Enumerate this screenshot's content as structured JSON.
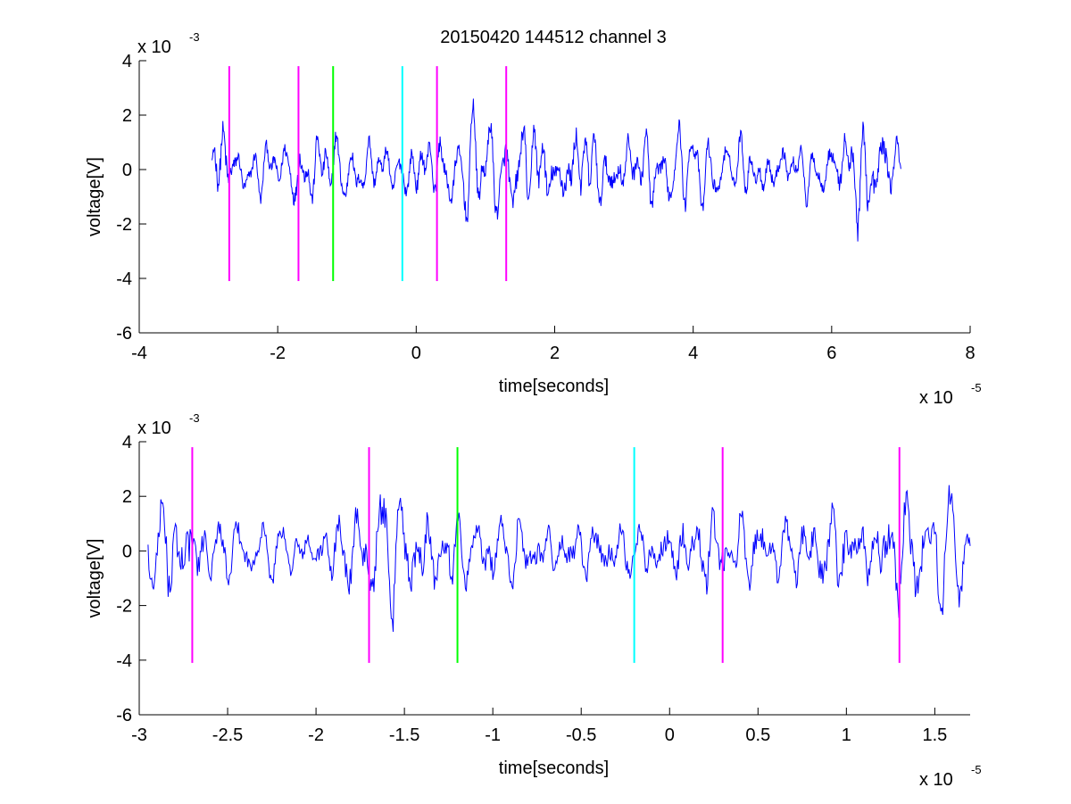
{
  "figure": {
    "title": "20150420 144512 channel 3"
  },
  "chart_data": [
    {
      "type": "line",
      "title": "20150420 144512 channel 3",
      "xlabel": "time[seconds]",
      "ylabel": "voltage[V]",
      "x_multiplier": "x 10",
      "x_multiplier_exponent": "-5",
      "y_multiplier": "x 10",
      "y_multiplier_exponent": "-3",
      "xlim": [
        -4,
        8
      ],
      "ylim": [
        -6,
        4
      ],
      "xticks": [
        -4,
        -2,
        0,
        2,
        4,
        6,
        8
      ],
      "xtick_labels": [
        "-4",
        "-2",
        "0",
        "2",
        "4",
        "6",
        "8"
      ],
      "yticks": [
        -6,
        -4,
        -2,
        0,
        2,
        4
      ],
      "ytick_labels": [
        "-6",
        "-4",
        "-2",
        "0",
        "2",
        "4"
      ],
      "grid": false,
      "signal": {
        "name": "",
        "color": "#0000ff",
        "x_range": [
          -2.95,
          7.0
        ],
        "points": 1200,
        "envelope_x": [
          -2.95,
          -2.8,
          -2.7,
          -2.6,
          -2.4,
          -2.0,
          -1.7,
          -1.4,
          -1.2,
          -1.0,
          -0.5,
          0.0,
          0.5,
          1.0,
          1.5,
          2.0,
          2.3,
          2.6,
          3.0,
          3.5,
          4.0,
          4.5,
          5.0,
          5.5,
          6.0,
          6.2,
          6.4,
          6.6,
          6.8,
          7.0
        ],
        "envelope_amp": [
          1.8,
          2.4,
          2.3,
          1.4,
          1.1,
          1.2,
          1.8,
          1.6,
          1.7,
          1.4,
          1.2,
          1.4,
          1.8,
          2.0,
          2.1,
          2.2,
          2.4,
          2.0,
          1.8,
          1.7,
          1.5,
          1.4,
          1.3,
          1.2,
          1.2,
          2.0,
          2.6,
          2.4,
          1.9,
          1.1
        ]
      },
      "markers": [
        {
          "x": -2.7,
          "color": "#ff00ff",
          "y_range": [
            -4.1,
            3.8
          ]
        },
        {
          "x": -1.7,
          "color": "#ff00ff",
          "y_range": [
            -4.1,
            3.8
          ]
        },
        {
          "x": -1.2,
          "color": "#00ff00",
          "y_range": [
            -4.1,
            3.8
          ]
        },
        {
          "x": -0.2,
          "color": "#00ffff",
          "y_range": [
            -4.1,
            3.8
          ]
        },
        {
          "x": 0.3,
          "color": "#ff00ff",
          "y_range": [
            -4.1,
            3.8
          ]
        },
        {
          "x": 1.3,
          "color": "#ff00ff",
          "y_range": [
            -4.1,
            3.8
          ]
        }
      ]
    },
    {
      "type": "line",
      "title": "",
      "xlabel": "time[seconds]",
      "ylabel": "voltage[V]",
      "x_multiplier": "x 10",
      "x_multiplier_exponent": "-5",
      "y_multiplier": "x 10",
      "y_multiplier_exponent": "-3",
      "xlim": [
        -3.0,
        1.7
      ],
      "ylim": [
        -6,
        4
      ],
      "xticks": [
        -3,
        -2.5,
        -2,
        -1.5,
        -1,
        -0.5,
        0,
        0.5,
        1,
        1.5
      ],
      "xtick_labels": [
        "-3",
        "-2.5",
        "-2",
        "-1.5",
        "-1",
        "-0.5",
        "0",
        "0.5",
        "1",
        "1.5"
      ],
      "yticks": [
        -6,
        -4,
        -2,
        0,
        2,
        4
      ],
      "ytick_labels": [
        "-6",
        "-4",
        "-2",
        "0",
        "2",
        "4"
      ],
      "grid": false,
      "signal": {
        "name": "",
        "color": "#0000ff",
        "x_range": [
          -2.95,
          1.7
        ],
        "points": 900,
        "envelope_x": [
          -2.95,
          -2.85,
          -2.75,
          -2.65,
          -2.5,
          -2.2,
          -2.0,
          -1.75,
          -1.65,
          -1.45,
          -1.3,
          -1.2,
          -1.0,
          -0.7,
          -0.4,
          -0.2,
          0.1,
          0.3,
          0.5,
          0.8,
          1.0,
          1.2,
          1.4,
          1.6,
          1.7
        ],
        "envelope_amp": [
          1.2,
          2.6,
          2.3,
          1.8,
          1.2,
          1.0,
          1.1,
          1.8,
          2.4,
          2.2,
          2.0,
          1.7,
          1.5,
          1.3,
          1.2,
          1.1,
          1.6,
          2.0,
          1.6,
          1.5,
          2.1,
          2.0,
          2.2,
          2.1,
          0.6
        ]
      },
      "markers": [
        {
          "x": -2.7,
          "color": "#ff00ff",
          "y_range": [
            -4.1,
            3.8
          ]
        },
        {
          "x": -1.7,
          "color": "#ff00ff",
          "y_range": [
            -4.1,
            3.8
          ]
        },
        {
          "x": -1.2,
          "color": "#00ff00",
          "y_range": [
            -4.1,
            3.8
          ]
        },
        {
          "x": -0.2,
          "color": "#00ffff",
          "y_range": [
            -4.1,
            3.8
          ]
        },
        {
          "x": 0.3,
          "color": "#ff00ff",
          "y_range": [
            -4.1,
            3.8
          ]
        },
        {
          "x": 1.3,
          "color": "#ff00ff",
          "y_range": [
            -4.1,
            3.8
          ]
        }
      ]
    }
  ]
}
